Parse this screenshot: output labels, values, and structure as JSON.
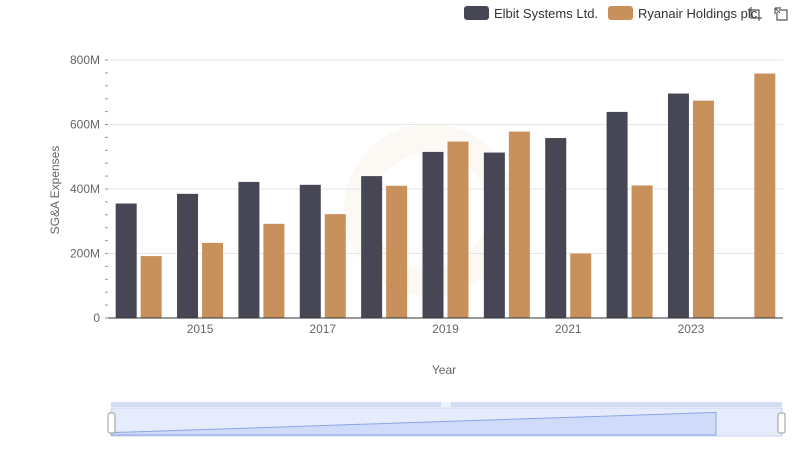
{
  "legend": {
    "items": [
      {
        "name": "Elbit Systems Ltd.",
        "color": "#474655"
      },
      {
        "name": "Ryanair Holdings plc",
        "color": "#c8915c"
      }
    ]
  },
  "toolbar": {
    "icons": [
      "crop-select-icon",
      "reset-zoom-icon"
    ]
  },
  "chart_data": {
    "type": "bar",
    "title": "",
    "xlabel": "Year",
    "ylabel": "SG&A Expenses",
    "categories": [
      "2014",
      "2015",
      "2016",
      "2017",
      "2018",
      "2019",
      "2020",
      "2021",
      "2022",
      "2023",
      "2024"
    ],
    "x_tick_labels": [
      "2015",
      "2017",
      "2019",
      "2021",
      "2023"
    ],
    "y_ticks": [
      0,
      200,
      400,
      600,
      800
    ],
    "y_tick_labels": [
      "0",
      "200M",
      "400M",
      "600M",
      "800M"
    ],
    "ylim": [
      0,
      800
    ],
    "units": "M",
    "grid": true,
    "legend_position": "top-right",
    "series": [
      {
        "name": "Elbit Systems Ltd.",
        "color": "#474655",
        "values": [
          355,
          385,
          422,
          413,
          440,
          515,
          513,
          558,
          639,
          696,
          null
        ]
      },
      {
        "name": "Ryanair Holdings plc",
        "color": "#c8915c",
        "values": [
          192,
          233,
          292,
          322,
          410,
          547,
          578,
          200,
          411,
          674,
          758
        ]
      }
    ],
    "navigator": {
      "series": "Ryanair Holdings plc",
      "range": [
        "2014",
        "2024"
      ]
    }
  }
}
